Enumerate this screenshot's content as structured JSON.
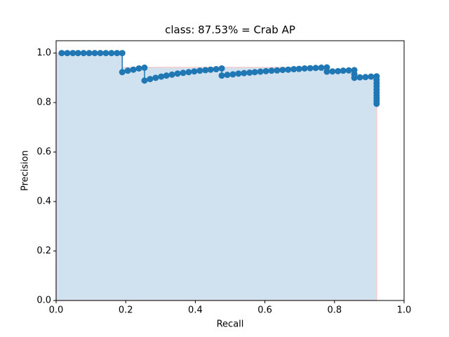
{
  "chart_data": {
    "type": "line",
    "title": "class: 87.53% = Crab AP",
    "x_label": "Recall",
    "y_label": "Precision",
    "xlim": [
      0,
      1
    ],
    "ylim": [
      0,
      1.05
    ],
    "xticks": [
      {
        "value": 0,
        "label": "0.0"
      },
      {
        "value": 0.2,
        "label": "0.2"
      },
      {
        "value": 0.4,
        "label": "0.4"
      },
      {
        "value": 0.6,
        "label": "0.6"
      },
      {
        "value": 0.8,
        "label": "0.8"
      },
      {
        "value": 1,
        "label": "1.0"
      }
    ],
    "yticks": [
      {
        "value": 0,
        "label": "0.0"
      },
      {
        "value": 0.2,
        "label": "0.2"
      },
      {
        "value": 0.4,
        "label": "0.4"
      },
      {
        "value": 0.6,
        "label": "0.6"
      },
      {
        "value": 0.8,
        "label": "0.8"
      },
      {
        "value": 1,
        "label": "1.0"
      }
    ],
    "series": [
      {
        "color": "#1f77b4",
        "fill_color": "#d0e1ef",
        "edge_color": "#f4cccc",
        "x": [
          0,
          0.19,
          0.19,
          0.778,
          0.778,
          0.857,
          0.857,
          0.921,
          0.921
        ],
        "values": [
          1,
          1,
          0.942,
          0.942,
          0.931,
          0.931,
          0.906,
          0.906,
          0
        ]
      },
      {
        "color": "#1f77b4",
        "markers": true,
        "x": [
          0.016,
          0.032,
          0.048,
          0.063,
          0.079,
          0.095,
          0.111,
          0.127,
          0.143,
          0.159,
          0.175,
          0.19,
          0.19,
          0.206,
          0.222,
          0.238,
          0.254,
          0.254,
          0.27,
          0.286,
          0.302,
          0.317,
          0.333,
          0.349,
          0.365,
          0.381,
          0.397,
          0.413,
          0.429,
          0.444,
          0.46,
          0.476,
          0.476,
          0.492,
          0.508,
          0.524,
          0.54,
          0.556,
          0.571,
          0.587,
          0.603,
          0.619,
          0.635,
          0.651,
          0.667,
          0.683,
          0.698,
          0.714,
          0.73,
          0.746,
          0.762,
          0.778,
          0.778,
          0.794,
          0.81,
          0.825,
          0.841,
          0.857,
          0.857,
          0.857,
          0.873,
          0.889,
          0.905,
          0.921,
          0.921,
          0.921,
          0.921,
          0.921,
          0.921,
          0.921,
          0.921,
          0.921,
          0.921
        ],
        "values": [
          1,
          1,
          1,
          1,
          1,
          1,
          1,
          1,
          1,
          1,
          1,
          1,
          0.923,
          0.929,
          0.933,
          0.938,
          0.941,
          0.889,
          0.895,
          0.9,
          0.905,
          0.909,
          0.913,
          0.917,
          0.92,
          0.923,
          0.926,
          0.929,
          0.931,
          0.933,
          0.935,
          0.938,
          0.909,
          0.912,
          0.914,
          0.917,
          0.919,
          0.921,
          0.923,
          0.925,
          0.927,
          0.929,
          0.93,
          0.932,
          0.933,
          0.935,
          0.936,
          0.938,
          0.939,
          0.94,
          0.941,
          0.942,
          0.925,
          0.926,
          0.927,
          0.929,
          0.93,
          0.931,
          0.915,
          0.9,
          0.902,
          0.903,
          0.905,
          0.906,
          0.892,
          0.879,
          0.866,
          0.853,
          0.841,
          0.829,
          0.817,
          0.806,
          0.795
        ]
      }
    ]
  }
}
